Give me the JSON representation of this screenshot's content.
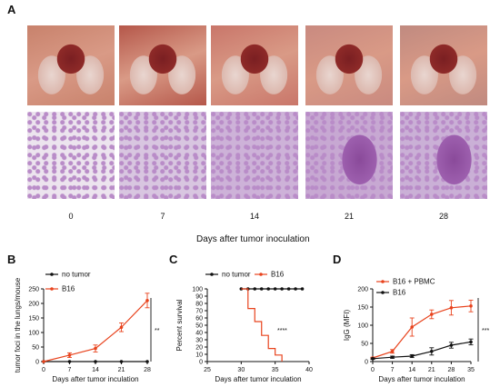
{
  "figure": {
    "panel_letters": [
      "A",
      "B",
      "C",
      "D"
    ],
    "panel_a": {
      "days": [
        "0",
        "7",
        "14",
        "21",
        "28"
      ],
      "xlabel": "Days after tumor inoculation",
      "gross_colors": [
        "#c8826c",
        "#b5574a",
        "#c9766a",
        "#c98a80",
        "#c08a80"
      ],
      "histo_colors": [
        "#ece4ee",
        "#d8c6e0",
        "#cdb2d8",
        "#c7a8d2",
        "#cab0d6"
      ]
    }
  },
  "chart_data": [
    {
      "type": "line",
      "panel": "B",
      "xlabel": "Days after tumor inculation",
      "ylabel": "tumor foci in the lungs/mouse",
      "xlim": [
        0,
        28
      ],
      "ylim": [
        0,
        250
      ],
      "xticks": [
        "0",
        "7",
        "14",
        "21",
        "28"
      ],
      "yticks": [
        "0",
        "50",
        "100",
        "150",
        "200",
        "250"
      ],
      "legend_position": "top-left",
      "series": [
        {
          "name": "no tumor",
          "color": "#111111",
          "x": [
            0,
            7,
            14,
            21,
            28
          ],
          "y": [
            0,
            0,
            0,
            0,
            0
          ]
        },
        {
          "name": "B16",
          "color": "#e8431d",
          "x": [
            0,
            7,
            14,
            21,
            28
          ],
          "y": [
            0,
            22,
            45,
            118,
            210
          ],
          "err": [
            0,
            8,
            12,
            15,
            25
          ]
        }
      ],
      "significance": "**"
    },
    {
      "type": "line",
      "panel": "C",
      "xlabel": "Days after tumor inculation",
      "ylabel": "Percent survival",
      "xlim": [
        25,
        40
      ],
      "ylim": [
        0,
        100
      ],
      "xticks": [
        "25",
        "30",
        "35",
        "40"
      ],
      "yticks": [
        "0",
        "10",
        "20",
        "30",
        "40",
        "50",
        "60",
        "70",
        "80",
        "90",
        "100"
      ],
      "legend_position": "top",
      "series": [
        {
          "name": "no tumor",
          "color": "#111111",
          "x": [
            30,
            31,
            32,
            33,
            34,
            35,
            36,
            37,
            38,
            39
          ],
          "y": [
            100,
            100,
            100,
            100,
            100,
            100,
            100,
            100,
            100,
            100
          ]
        },
        {
          "name": "B16",
          "color": "#e8431d",
          "x": [
            30,
            31,
            32,
            33,
            34,
            35,
            36
          ],
          "y": [
            100,
            73,
            55,
            36,
            18,
            9,
            0
          ]
        }
      ],
      "significance": "****"
    },
    {
      "type": "line",
      "panel": "D",
      "xlabel": "Days after tumor inculation",
      "ylabel": "IgG (MFI)",
      "xlim": [
        0,
        35
      ],
      "ylim": [
        0,
        200
      ],
      "xticks": [
        "0",
        "7",
        "14",
        "21",
        "28",
        "35"
      ],
      "yticks": [
        "0",
        "50",
        "100",
        "150",
        "200"
      ],
      "legend_position": "top-left",
      "series": [
        {
          "name": "B16 + PBMC",
          "color": "#e8431d",
          "x": [
            0,
            7,
            14,
            21,
            28,
            35
          ],
          "y": [
            10,
            28,
            95,
            130,
            148,
            153
          ],
          "err": [
            2,
            5,
            25,
            12,
            20,
            16
          ]
        },
        {
          "name": "B16",
          "color": "#111111",
          "x": [
            0,
            7,
            14,
            21,
            28,
            35
          ],
          "y": [
            8,
            12,
            15,
            28,
            45,
            54
          ],
          "err": [
            2,
            3,
            4,
            10,
            8,
            8
          ]
        }
      ],
      "significance": "***"
    }
  ]
}
